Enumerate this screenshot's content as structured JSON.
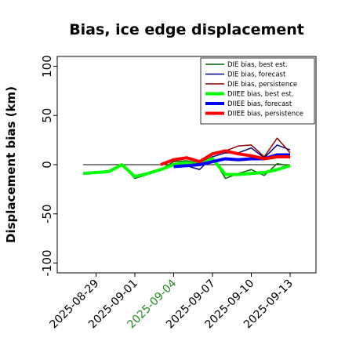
{
  "chart_data": {
    "type": "line",
    "title": "Bias, ice edge displacement",
    "ylabel": "Displacement bias (km)",
    "x": [
      "2025-08-28",
      "2025-08-29",
      "2025-08-30",
      "2025-08-31",
      "2025-09-01",
      "2025-09-02",
      "2025-09-03",
      "2025-09-04",
      "2025-09-05",
      "2025-09-06",
      "2025-09-07",
      "2025-09-08",
      "2025-09-09",
      "2025-09-10",
      "2025-09-11",
      "2025-09-12",
      "2025-09-13"
    ],
    "xlim": [
      "2025-08-26",
      "2025-09-15"
    ],
    "xticks": [
      "2025-08-29",
      "2025-09-01",
      "2025-09-04",
      "2025-09-07",
      "2025-09-10",
      "2025-09-13"
    ],
    "xtick_colors": [
      "#000000",
      "#000000",
      "#228b22",
      "#000000",
      "#000000",
      "#000000"
    ],
    "ylim": [
      -110,
      110
    ],
    "yticks": [
      -100,
      -50,
      0,
      50,
      100
    ],
    "reference_line": {
      "y": 0,
      "x": [
        "2025-08-28",
        "2025-09-13"
      ],
      "color": "#000000"
    },
    "legend": "upper right",
    "series": [
      {
        "name": "DIE bias, best est.",
        "color": "#006400",
        "width": 1.5,
        "values": [
          -9,
          -8,
          -6,
          0,
          -14,
          -10,
          -5,
          3,
          4,
          1,
          8,
          -14,
          -9,
          -5,
          -11,
          1,
          -1
        ]
      },
      {
        "name": "DIE bias, forecast",
        "color": "#00008b",
        "width": 1.5,
        "values": [
          null,
          null,
          null,
          null,
          null,
          null,
          null,
          -2,
          -1,
          -5,
          8,
          12,
          12,
          17,
          7,
          20,
          15
        ]
      },
      {
        "name": "DIE bias, persistence",
        "color": "#8b0000",
        "width": 1.5,
        "values": [
          null,
          null,
          null,
          null,
          null,
          null,
          0,
          6,
          7,
          3,
          12,
          14,
          19,
          20,
          8,
          27,
          12
        ]
      },
      {
        "name": "DIIEE bias, best est.",
        "color": "#00ff00",
        "width": 4,
        "values": [
          -9,
          -8,
          -7,
          0,
          -12,
          -9,
          -5,
          0,
          2,
          0,
          6,
          -10,
          -10,
          -9,
          -8,
          -5,
          -1
        ]
      },
      {
        "name": "DIIEE bias, forecast",
        "color": "#0000ff",
        "width": 4,
        "values": [
          null,
          null,
          null,
          null,
          null,
          null,
          null,
          -2,
          -1,
          0,
          3,
          6,
          5,
          6,
          6,
          10,
          10
        ]
      },
      {
        "name": "DIIEE bias, persistence",
        "color": "#ff0000",
        "width": 4,
        "values": [
          null,
          null,
          null,
          null,
          null,
          null,
          0,
          5,
          7,
          3,
          11,
          14,
          11,
          9,
          6,
          8,
          8
        ]
      }
    ]
  }
}
